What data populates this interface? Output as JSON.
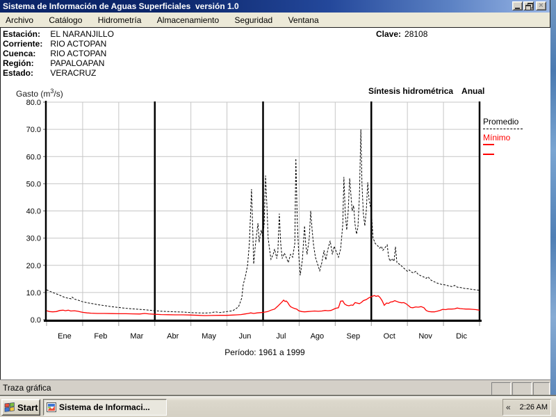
{
  "window": {
    "title": "Sistema de Información de Aguas Superficiales  versión 1.0"
  },
  "icons": {
    "close_glyph": "×",
    "tray_chevron_glyph": "«"
  },
  "menu": {
    "items": [
      "Archivo",
      "Catálogo",
      "Hidrometría",
      "Almacenamiento",
      "Seguridad",
      "Ventana"
    ]
  },
  "station": {
    "fields": [
      {
        "label": "Estación:",
        "value": "EL NARANJILLO"
      },
      {
        "label": "Corriente:",
        "value": "RIO ACTOPAN"
      },
      {
        "label": "Cuenca:",
        "value": "RIO ACTOPAN"
      },
      {
        "label": "Región:",
        "value": "PAPALOAPAN"
      },
      {
        "label": "Estado:",
        "value": "VERACRUZ"
      }
    ],
    "clave_label": "Clave:",
    "clave_value": "28108"
  },
  "chart": {
    "ylabel_parts": [
      "Gasto (m",
      "3",
      "/s)"
    ]
  },
  "chart_data": {
    "type": "line",
    "title": "Síntesis hidrométrica",
    "subtitle": "Anual",
    "ylabel": "Gasto (m³/s)",
    "period": "Período: 1961 a 1999",
    "x_categories": [
      "Ene",
      "Feb",
      "Mar",
      "Abr",
      "May",
      "Jun",
      "Jul",
      "Ago",
      "Sep",
      "Oct",
      "Nov",
      "Dic"
    ],
    "ylim": [
      0,
      80
    ],
    "ytick_step": 10,
    "grid": true,
    "legend_position": "right",
    "series": [
      {
        "name": "Promedio",
        "style": "dashed",
        "color": "#000000",
        "points": [
          [
            0,
            11.0
          ],
          [
            0.1,
            10.4
          ],
          [
            0.21,
            9.8
          ],
          [
            0.31,
            9.3
          ],
          [
            0.4,
            8.8
          ],
          [
            0.5,
            8.2
          ],
          [
            0.6,
            7.9
          ],
          [
            0.68,
            7.7
          ],
          [
            0.71,
            8.3
          ],
          [
            0.77,
            7.6
          ],
          [
            0.87,
            7.2
          ],
          [
            1.0,
            6.6
          ],
          [
            1.14,
            6.2
          ],
          [
            1.27,
            5.9
          ],
          [
            1.43,
            5.5
          ],
          [
            1.6,
            5.2
          ],
          [
            1.79,
            4.8
          ],
          [
            2.0,
            4.5
          ],
          [
            2.2,
            4.2
          ],
          [
            2.39,
            4.0
          ],
          [
            2.58,
            3.8
          ],
          [
            2.77,
            3.6
          ],
          [
            3.0,
            3.3
          ],
          [
            3.2,
            3.1
          ],
          [
            3.39,
            3.0
          ],
          [
            3.58,
            2.9
          ],
          [
            3.78,
            2.8
          ],
          [
            4.0,
            2.6
          ],
          [
            4.2,
            2.5
          ],
          [
            4.39,
            2.45
          ],
          [
            4.55,
            2.55
          ],
          [
            4.68,
            2.9
          ],
          [
            4.8,
            2.6
          ],
          [
            5.0,
            3.0
          ],
          [
            5.16,
            3.3
          ],
          [
            5.32,
            4.7
          ],
          [
            5.41,
            8.0
          ],
          [
            5.45,
            12.8
          ],
          [
            5.51,
            16.0
          ],
          [
            5.57,
            20.0
          ],
          [
            5.62,
            28.0
          ],
          [
            5.68,
            48.0
          ],
          [
            5.72,
            30.0
          ],
          [
            5.74,
            20.5
          ],
          [
            5.78,
            26.5
          ],
          [
            5.82,
            31.5
          ],
          [
            5.86,
            35.5
          ],
          [
            5.89,
            28.5
          ],
          [
            5.95,
            33.0
          ],
          [
            5.99,
            30.5
          ],
          [
            6.03,
            35.0
          ],
          [
            6.07,
            53.0
          ],
          [
            6.11,
            41.0
          ],
          [
            6.14,
            30.0
          ],
          [
            6.18,
            26.0
          ],
          [
            6.22,
            22.2
          ],
          [
            6.28,
            24.0
          ],
          [
            6.32,
            26.0
          ],
          [
            6.38,
            22.5
          ],
          [
            6.41,
            25.0
          ],
          [
            6.45,
            39.0
          ],
          [
            6.49,
            28.0
          ],
          [
            6.53,
            22.5
          ],
          [
            6.59,
            24.5
          ],
          [
            6.64,
            23.0
          ],
          [
            6.7,
            21.0
          ],
          [
            6.76,
            24.0
          ],
          [
            6.82,
            23.0
          ],
          [
            6.88,
            28.0
          ],
          [
            6.91,
            59.3
          ],
          [
            6.95,
            35.3
          ],
          [
            6.99,
            23.8
          ],
          [
            7.03,
            16.3
          ],
          [
            7.09,
            22.0
          ],
          [
            7.15,
            34.5
          ],
          [
            7.18,
            28.0
          ],
          [
            7.22,
            24.0
          ],
          [
            7.28,
            30.0
          ],
          [
            7.32,
            40.0
          ],
          [
            7.36,
            33.0
          ],
          [
            7.4,
            27.4
          ],
          [
            7.45,
            23.0
          ],
          [
            7.51,
            20.5
          ],
          [
            7.57,
            18.0
          ],
          [
            7.63,
            21.0
          ],
          [
            7.69,
            25.5
          ],
          [
            7.74,
            22.0
          ],
          [
            7.8,
            26.0
          ],
          [
            7.86,
            29.0
          ],
          [
            7.92,
            24.0
          ],
          [
            7.97,
            27.0
          ],
          [
            8.03,
            25.0
          ],
          [
            8.09,
            23.0
          ],
          [
            8.15,
            26.0
          ],
          [
            8.21,
            35.0
          ],
          [
            8.24,
            52.5
          ],
          [
            8.28,
            38.5
          ],
          [
            8.32,
            33.0
          ],
          [
            8.36,
            40.0
          ],
          [
            8.4,
            52.0
          ],
          [
            8.44,
            45.0
          ],
          [
            8.47,
            40.0
          ],
          [
            8.51,
            42.0
          ],
          [
            8.55,
            35.0
          ],
          [
            8.59,
            31.5
          ],
          [
            8.63,
            34.0
          ],
          [
            8.67,
            45.0
          ],
          [
            8.71,
            70.0
          ],
          [
            8.74,
            50.0
          ],
          [
            8.78,
            39.0
          ],
          [
            8.82,
            34.5
          ],
          [
            8.86,
            40.0
          ],
          [
            8.9,
            50.5
          ],
          [
            8.94,
            44.0
          ],
          [
            9.0,
            40.0
          ],
          [
            9.05,
            30.0
          ],
          [
            9.11,
            28.0
          ],
          [
            9.17,
            27.3
          ],
          [
            9.23,
            26.3
          ],
          [
            9.28,
            27.0
          ],
          [
            9.32,
            25.5
          ],
          [
            9.38,
            26.5
          ],
          [
            9.44,
            27.5
          ],
          [
            9.48,
            23.0
          ],
          [
            9.52,
            21.5
          ],
          [
            9.57,
            22.5
          ],
          [
            9.63,
            21.5
          ],
          [
            9.67,
            26.8
          ],
          [
            9.71,
            21.0
          ],
          [
            9.77,
            20.5
          ],
          [
            9.82,
            20.0
          ],
          [
            9.88,
            19.2
          ],
          [
            9.94,
            18.5
          ],
          [
            10.0,
            17.8
          ],
          [
            10.05,
            18.3
          ],
          [
            10.11,
            17.5
          ],
          [
            10.17,
            17.2
          ],
          [
            10.23,
            17.8
          ],
          [
            10.29,
            16.8
          ],
          [
            10.36,
            16.2
          ],
          [
            10.44,
            15.8
          ],
          [
            10.52,
            15.2
          ],
          [
            10.57,
            15.8
          ],
          [
            10.65,
            14.6
          ],
          [
            10.75,
            13.9
          ],
          [
            10.84,
            13.4
          ],
          [
            10.94,
            13.0
          ],
          [
            11.04,
            12.8
          ],
          [
            11.13,
            12.5
          ],
          [
            11.23,
            12.2
          ],
          [
            11.31,
            12.6
          ],
          [
            11.38,
            12.0
          ],
          [
            11.48,
            11.8
          ],
          [
            11.58,
            11.5
          ],
          [
            11.67,
            11.4
          ],
          [
            11.77,
            11.2
          ],
          [
            11.88,
            11.0
          ],
          [
            12.0,
            10.8
          ]
        ]
      },
      {
        "name": "Mínimo",
        "style": "solid",
        "color": "#ff0000",
        "points": [
          [
            0,
            3.3
          ],
          [
            0.08,
            3.0
          ],
          [
            0.17,
            2.9
          ],
          [
            0.27,
            3.0
          ],
          [
            0.37,
            3.4
          ],
          [
            0.46,
            3.5
          ],
          [
            0.52,
            3.3
          ],
          [
            0.6,
            3.5
          ],
          [
            0.67,
            3.2
          ],
          [
            0.77,
            3.3
          ],
          [
            0.87,
            3.1
          ],
          [
            0.94,
            2.9
          ],
          [
            1.0,
            2.7
          ],
          [
            1.12,
            2.5
          ],
          [
            1.23,
            2.4
          ],
          [
            1.41,
            2.3
          ],
          [
            1.6,
            2.3
          ],
          [
            1.81,
            2.25
          ],
          [
            2.0,
            2.2
          ],
          [
            2.2,
            2.2
          ],
          [
            2.39,
            2.15
          ],
          [
            2.58,
            2.1
          ],
          [
            2.72,
            2.3
          ],
          [
            2.83,
            2.15
          ],
          [
            3.0,
            2.0
          ],
          [
            3.18,
            1.9
          ],
          [
            3.37,
            1.85
          ],
          [
            3.56,
            1.8
          ],
          [
            3.78,
            1.8
          ],
          [
            4.0,
            1.7
          ],
          [
            4.2,
            1.6
          ],
          [
            4.39,
            1.5
          ],
          [
            4.58,
            1.55
          ],
          [
            4.8,
            1.6
          ],
          [
            5.0,
            1.6
          ],
          [
            5.16,
            1.7
          ],
          [
            5.28,
            1.8
          ],
          [
            5.39,
            1.9
          ],
          [
            5.49,
            2.1
          ],
          [
            5.59,
            2.3
          ],
          [
            5.66,
            2.5
          ],
          [
            5.74,
            2.3
          ],
          [
            5.84,
            2.5
          ],
          [
            5.93,
            2.6
          ],
          [
            6.01,
            2.7
          ],
          [
            6.13,
            3.0
          ],
          [
            6.22,
            3.5
          ],
          [
            6.32,
            3.9
          ],
          [
            6.41,
            5.0
          ],
          [
            6.47,
            5.8
          ],
          [
            6.53,
            6.6
          ],
          [
            6.57,
            7.2
          ],
          [
            6.61,
            6.7
          ],
          [
            6.64,
            6.9
          ],
          [
            6.68,
            6.4
          ],
          [
            6.72,
            5.5
          ],
          [
            6.76,
            4.8
          ],
          [
            6.82,
            4.4
          ],
          [
            6.88,
            4.1
          ],
          [
            6.93,
            3.9
          ],
          [
            6.99,
            3.3
          ],
          [
            7.07,
            3.0
          ],
          [
            7.15,
            2.9
          ],
          [
            7.24,
            3.0
          ],
          [
            7.34,
            3.1
          ],
          [
            7.43,
            3.2
          ],
          [
            7.53,
            3.1
          ],
          [
            7.63,
            3.2
          ],
          [
            7.72,
            3.4
          ],
          [
            7.8,
            3.3
          ],
          [
            7.88,
            3.4
          ],
          [
            7.95,
            3.8
          ],
          [
            8.01,
            4.2
          ],
          [
            8.09,
            4.4
          ],
          [
            8.15,
            6.8
          ],
          [
            8.21,
            6.9
          ],
          [
            8.26,
            5.8
          ],
          [
            8.32,
            5.3
          ],
          [
            8.38,
            5.1
          ],
          [
            8.44,
            5.4
          ],
          [
            8.49,
            5.3
          ],
          [
            8.55,
            6.3
          ],
          [
            8.61,
            6.1
          ],
          [
            8.67,
            5.9
          ],
          [
            8.72,
            6.3
          ],
          [
            8.78,
            7.0
          ],
          [
            8.86,
            7.4
          ],
          [
            8.94,
            8.1
          ],
          [
            9.02,
            8.6
          ],
          [
            9.09,
            8.9
          ],
          [
            9.13,
            8.6
          ],
          [
            9.19,
            8.8
          ],
          [
            9.24,
            8.2
          ],
          [
            9.3,
            7.0
          ],
          [
            9.36,
            5.3
          ],
          [
            9.42,
            6.1
          ],
          [
            9.48,
            6.0
          ],
          [
            9.53,
            6.5
          ],
          [
            9.59,
            6.6
          ],
          [
            9.65,
            7.0
          ],
          [
            9.71,
            6.7
          ],
          [
            9.77,
            6.4
          ],
          [
            9.84,
            6.2
          ],
          [
            9.9,
            6.3
          ],
          [
            9.96,
            5.9
          ],
          [
            10.03,
            5.2
          ],
          [
            10.09,
            4.5
          ],
          [
            10.15,
            4.4
          ],
          [
            10.23,
            4.7
          ],
          [
            10.3,
            4.6
          ],
          [
            10.38,
            4.8
          ],
          [
            10.46,
            4.4
          ],
          [
            10.52,
            3.4
          ],
          [
            10.59,
            3.0
          ],
          [
            10.67,
            2.9
          ],
          [
            10.75,
            2.9
          ],
          [
            10.82,
            3.1
          ],
          [
            10.9,
            3.4
          ],
          [
            10.98,
            3.8
          ],
          [
            11.06,
            3.7
          ],
          [
            11.13,
            3.9
          ],
          [
            11.23,
            3.9
          ],
          [
            11.31,
            4.0
          ],
          [
            11.38,
            4.3
          ],
          [
            11.46,
            4.1
          ],
          [
            11.54,
            4.0
          ],
          [
            11.62,
            3.9
          ],
          [
            11.71,
            3.9
          ],
          [
            11.81,
            3.8
          ],
          [
            11.9,
            3.7
          ],
          [
            12.0,
            3.5
          ]
        ]
      }
    ]
  },
  "status_bar": {
    "text": "Traza gráfica"
  },
  "taskbar": {
    "start_label": "Start",
    "task_label": "Sistema de Informaci...",
    "clock": "2:26 AM"
  }
}
